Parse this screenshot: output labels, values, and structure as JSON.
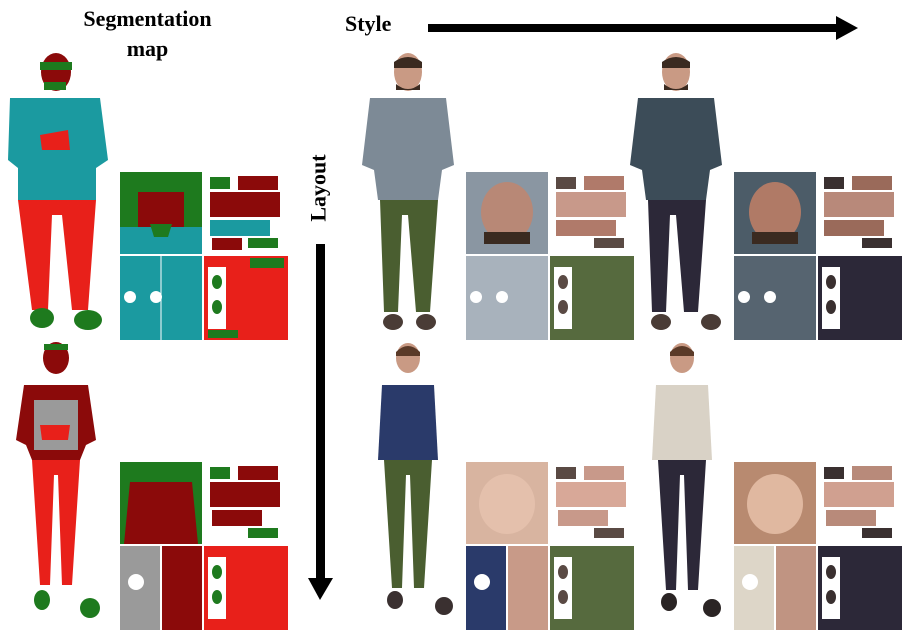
{
  "labels": {
    "segmentation_map": "Segmentation map",
    "style": "Style",
    "layout": "Layout"
  },
  "colors": {
    "seg_teal": "#1b9aa0",
    "seg_red": "#e8201a",
    "seg_green": "#1e7a1e",
    "seg_darkred": "#8b0a0a",
    "seg_gray": "#9a9a9a",
    "gray_shirt": "#7d8a96",
    "dark_shirt": "#3c4c58",
    "green_pants": "#4a5e30",
    "dark_pants": "#2c2838",
    "navy_top": "#2a3a6a",
    "beige_top": "#d9d2c6",
    "skin": "#c99a84"
  },
  "panels": [
    {
      "row": "male",
      "column": "segmentation-map"
    },
    {
      "row": "male",
      "column": "style-1"
    },
    {
      "row": "male",
      "column": "style-2"
    },
    {
      "row": "female",
      "column": "segmentation-map"
    },
    {
      "row": "female",
      "column": "style-1"
    },
    {
      "row": "female",
      "column": "style-2"
    }
  ]
}
